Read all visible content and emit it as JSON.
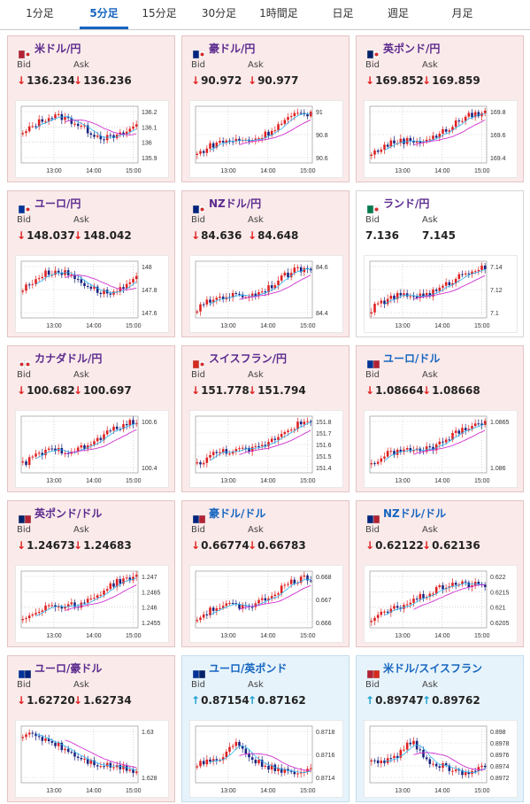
{
  "tabs": [
    "1分足",
    "5分足",
    "15分足",
    "30分足",
    "1時間足",
    "日足",
    "週足",
    "月足"
  ],
  "active_tab": "5分足",
  "bid_label": "Bid",
  "ask_label": "Ask",
  "x_ticks": [
    "13:00",
    "14:00",
    "15:00"
  ],
  "colors": {
    "up_candle": "#e02020",
    "down_candle": "#1a237e",
    "ma_short": "#29b6f6",
    "ma_long": "#d030d0",
    "title_purple": "#5b2a8e",
    "title_blue": "#1565c0",
    "active_tab": "#1565c0"
  },
  "cards": [
    {
      "title": "米ドル/円",
      "flag": "flag-us-jp",
      "bg": "red",
      "tcolor": "purple",
      "bid": "136.234",
      "ask": "136.236",
      "bid_dir": "down",
      "ask_dir": "down",
      "y_ticks": [
        "136.2",
        "136.1",
        "136",
        "135.9"
      ],
      "trend": "up2"
    },
    {
      "title": "豪ドル/円",
      "flag": "flag-au-jp",
      "bg": "red",
      "tcolor": "purple",
      "bid": "90.972",
      "ask": "90.977",
      "bid_dir": "down",
      "ask_dir": "down",
      "y_ticks": [
        "91",
        "90.8",
        "90.6"
      ],
      "trend": "up"
    },
    {
      "title": "英ポンド/円",
      "flag": "flag-gb-jp",
      "bg": "red",
      "tcolor": "purple",
      "bid": "169.852",
      "ask": "169.859",
      "bid_dir": "down",
      "ask_dir": "down",
      "y_ticks": [
        "169.8",
        "169.6",
        "169.4"
      ],
      "trend": "up"
    },
    {
      "title": "ユーロ/円",
      "flag": "flag-eu-jp",
      "bg": "red",
      "tcolor": "purple",
      "bid": "148.037",
      "ask": "148.042",
      "bid_dir": "down",
      "ask_dir": "down",
      "y_ticks": [
        "148",
        "147.8",
        "147.6"
      ],
      "trend": "up2"
    },
    {
      "title": "NZドル/円",
      "flag": "flag-nz-jp",
      "bg": "red",
      "tcolor": "purple",
      "bid": "84.636",
      "ask": "84.648",
      "bid_dir": "down",
      "ask_dir": "down",
      "y_ticks": [
        "84.6",
        "84.4"
      ],
      "trend": "up"
    },
    {
      "title": "ランド/円",
      "flag": "flag-za-jp",
      "bg": "white",
      "tcolor": "purple",
      "bid": "7.136",
      "ask": "7.145",
      "bid_dir": "none",
      "ask_dir": "none",
      "y_ticks": [
        "7.14",
        "7.12",
        "7.1"
      ],
      "trend": "up"
    },
    {
      "title": "カナダドル/円",
      "flag": "flag-ca-jp",
      "bg": "red",
      "tcolor": "purple",
      "bid": "100.682",
      "ask": "100.697",
      "bid_dir": "down",
      "ask_dir": "down",
      "y_ticks": [
        "100.6",
        "100.4"
      ],
      "trend": "up"
    },
    {
      "title": "スイスフラン/円",
      "flag": "flag-ch-jp",
      "bg": "red",
      "tcolor": "purple",
      "bid": "151.778",
      "ask": "151.794",
      "bid_dir": "down",
      "ask_dir": "down",
      "y_ticks": [
        "151.8",
        "151.7",
        "151.6",
        "151.5",
        "151.4"
      ],
      "trend": "up"
    },
    {
      "title": "ユーロ/ドル",
      "flag": "flag-eu-us",
      "bg": "red",
      "tcolor": "blue",
      "bid": "1.08664",
      "ask": "1.08668",
      "bid_dir": "down",
      "ask_dir": "down",
      "y_ticks": [
        "1.0865",
        "1.086"
      ],
      "trend": "up"
    },
    {
      "title": "英ポンド/ドル",
      "flag": "flag-gb-us",
      "bg": "red",
      "tcolor": "purple",
      "bid": "1.24673",
      "ask": "1.24683",
      "bid_dir": "down",
      "ask_dir": "down",
      "y_ticks": [
        "1.247",
        "1.2465",
        "1.246",
        "1.2455"
      ],
      "trend": "up"
    },
    {
      "title": "豪ドル/ドル",
      "flag": "flag-au-us",
      "bg": "red",
      "tcolor": "blue",
      "bid": "0.66774",
      "ask": "0.66783",
      "bid_dir": "down",
      "ask_dir": "down",
      "y_ticks": [
        "0.668",
        "0.667",
        "0.666"
      ],
      "trend": "up"
    },
    {
      "title": "NZドル/ドル",
      "flag": "flag-nz-us",
      "bg": "red",
      "tcolor": "blue",
      "bid": "0.62122",
      "ask": "0.62136",
      "bid_dir": "down",
      "ask_dir": "down",
      "y_ticks": [
        "0.622",
        "0.6215",
        "0.621",
        "0.6205"
      ],
      "trend": "upflat"
    },
    {
      "title": "ユーロ/豪ドル",
      "flag": "flag-eu-au",
      "bg": "red",
      "tcolor": "purple",
      "bid": "1.62720",
      "ask": "1.62734",
      "bid_dir": "down",
      "ask_dir": "down",
      "y_ticks": [
        "1.63",
        "1.628"
      ],
      "trend": "down"
    },
    {
      "title": "ユーロ/英ポンド",
      "flag": "flag-eu-gb",
      "bg": "blue",
      "tcolor": "blue",
      "bid": "0.87154",
      "ask": "0.87162",
      "bid_dir": "up",
      "ask_dir": "up",
      "y_ticks": [
        "0.8718",
        "0.8716",
        "0.8714"
      ],
      "trend": "bump"
    },
    {
      "title": "米ドル/スイスフラン",
      "flag": "flag-us-ch",
      "bg": "blue",
      "tcolor": "blue",
      "bid": "0.89747",
      "ask": "0.89762",
      "bid_dir": "up",
      "ask_dir": "up",
      "y_ticks": [
        "0.898",
        "0.8978",
        "0.8976",
        "0.8974",
        "0.8972"
      ],
      "trend": "bump"
    }
  ]
}
